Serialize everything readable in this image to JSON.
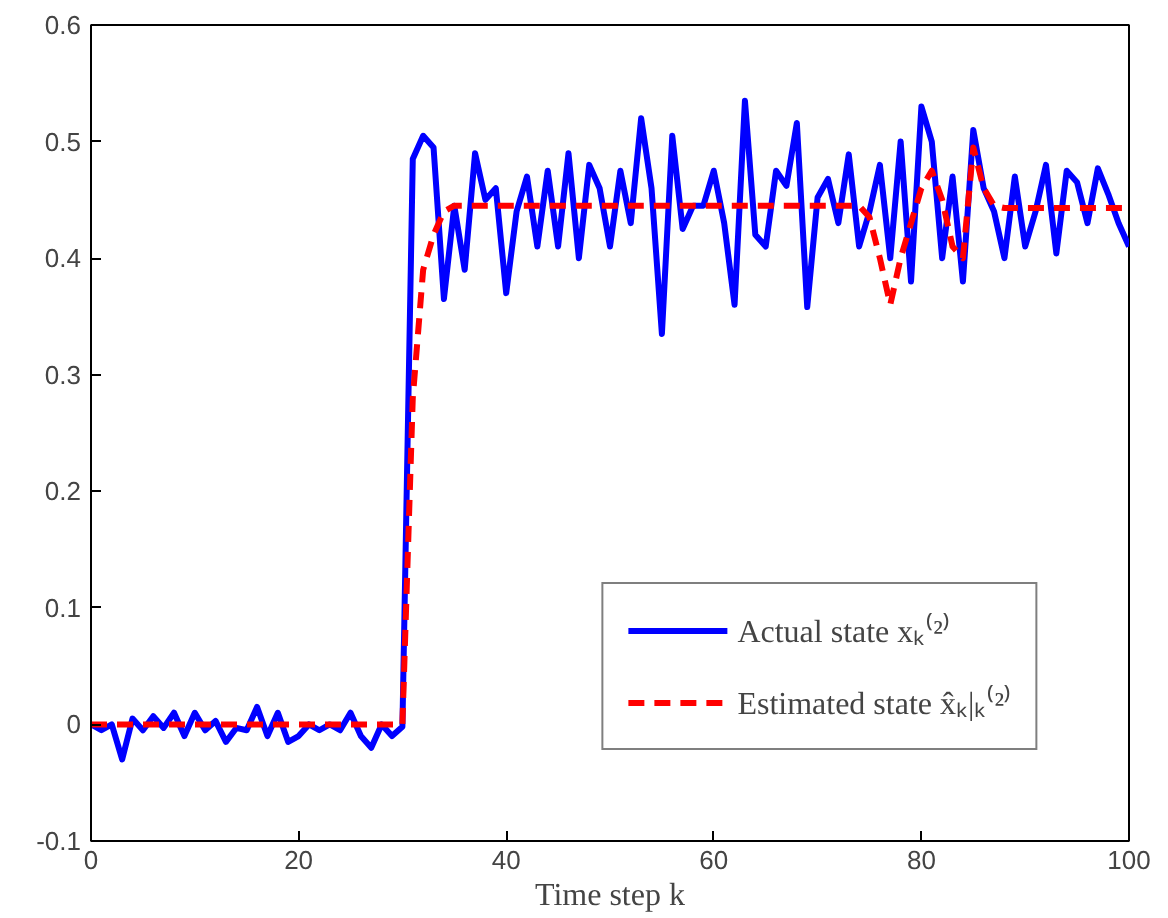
{
  "chart_data": {
    "type": "line",
    "xlabel": "Time step k",
    "x": [
      0,
      1,
      2,
      3,
      4,
      5,
      6,
      7,
      8,
      9,
      10,
      11,
      12,
      13,
      14,
      15,
      16,
      17,
      18,
      19,
      20,
      21,
      22,
      23,
      24,
      25,
      26,
      27,
      28,
      29,
      30,
      31,
      32,
      33,
      34,
      35,
      36,
      37,
      38,
      39,
      40,
      41,
      42,
      43,
      44,
      45,
      46,
      47,
      48,
      49,
      50,
      51,
      52,
      53,
      54,
      55,
      56,
      57,
      58,
      59,
      60,
      61,
      62,
      63,
      64,
      65,
      66,
      67,
      68,
      69,
      70,
      71,
      72,
      73,
      74,
      75,
      76,
      77,
      78,
      79,
      80,
      81,
      82,
      83,
      84,
      85,
      86,
      87,
      88,
      89,
      90,
      91,
      92,
      93,
      94,
      95,
      96,
      97,
      98,
      99,
      100
    ],
    "series": [
      {
        "name": "Actual state xₖ⁽²⁾",
        "color": "#0000ff",
        "line_style": "solid",
        "values": [
          0,
          -0.005,
          0,
          -0.03,
          0.005,
          -0.005,
          0.007,
          -0.003,
          0.01,
          -0.01,
          0.01,
          -0.005,
          0.003,
          -0.015,
          -0.003,
          -0.005,
          0.015,
          -0.01,
          0.01,
          -0.015,
          -0.01,
          0,
          -0.005,
          0,
          -0.005,
          0.01,
          -0.01,
          -0.02,
          0,
          -0.01,
          -0.002,
          0.485,
          0.505,
          0.495,
          0.365,
          0.445,
          0.39,
          0.49,
          0.45,
          0.46,
          0.37,
          0.44,
          0.47,
          0.41,
          0.475,
          0.41,
          0.49,
          0.4,
          0.48,
          0.46,
          0.41,
          0.475,
          0.43,
          0.52,
          0.46,
          0.335,
          0.505,
          0.425,
          0.445,
          0.445,
          0.475,
          0.43,
          0.36,
          0.535,
          0.42,
          0.41,
          0.475,
          0.462,
          0.516,
          0.358,
          0.452,
          0.468,
          0.43,
          0.489,
          0.41,
          0.44,
          0.48,
          0.4,
          0.5,
          0.38,
          0.53,
          0.5,
          0.4,
          0.47,
          0.38,
          0.51,
          0.46,
          0.44,
          0.4,
          0.47,
          0.41,
          0.44,
          0.48,
          0.404,
          0.475,
          0.465,
          0.43,
          0.477,
          0.455,
          0.43,
          0.41
        ]
      },
      {
        "name": "Estimated state x̂ₖ|ₖ⁽²⁾",
        "color": "#ff0000",
        "line_style": "dashed",
        "values": [
          0,
          0,
          0,
          0,
          0,
          0,
          0,
          0,
          0,
          0,
          0,
          0,
          0,
          0,
          0,
          0,
          0,
          0,
          0,
          0,
          0,
          0,
          0,
          0,
          0,
          0,
          0,
          0,
          0,
          0,
          0,
          0.28,
          0.39,
          0.42,
          0.44,
          0.445,
          0.445,
          0.445,
          0.445,
          0.445,
          0.445,
          0.445,
          0.445,
          0.445,
          0.445,
          0.445,
          0.445,
          0.445,
          0.445,
          0.445,
          0.445,
          0.445,
          0.445,
          0.445,
          0.445,
          0.445,
          0.445,
          0.445,
          0.445,
          0.445,
          0.445,
          0.445,
          0.445,
          0.445,
          0.445,
          0.445,
          0.445,
          0.445,
          0.445,
          0.445,
          0.445,
          0.445,
          0.445,
          0.445,
          0.445,
          0.435,
          0.4,
          0.36,
          0.4,
          0.43,
          0.46,
          0.475,
          0.45,
          0.41,
          0.4,
          0.495,
          0.46,
          0.445,
          0.443,
          0.443,
          0.443,
          0.443,
          0.443,
          0.443,
          0.443,
          0.443,
          0.443,
          0.443,
          0.443,
          0.443,
          0.443
        ]
      }
    ],
    "xlim": [
      0,
      100
    ],
    "xticks": [
      0,
      20,
      40,
      60,
      80,
      100
    ],
    "ylim": [
      -0.1,
      0.6
    ],
    "yticks": [
      {
        "value": -0.1,
        "label": "-0.1"
      },
      0,
      0.1,
      0.2,
      0.3,
      0.4,
      0.5,
      0.6
    ],
    "grid": false,
    "legend": "bottom right"
  }
}
